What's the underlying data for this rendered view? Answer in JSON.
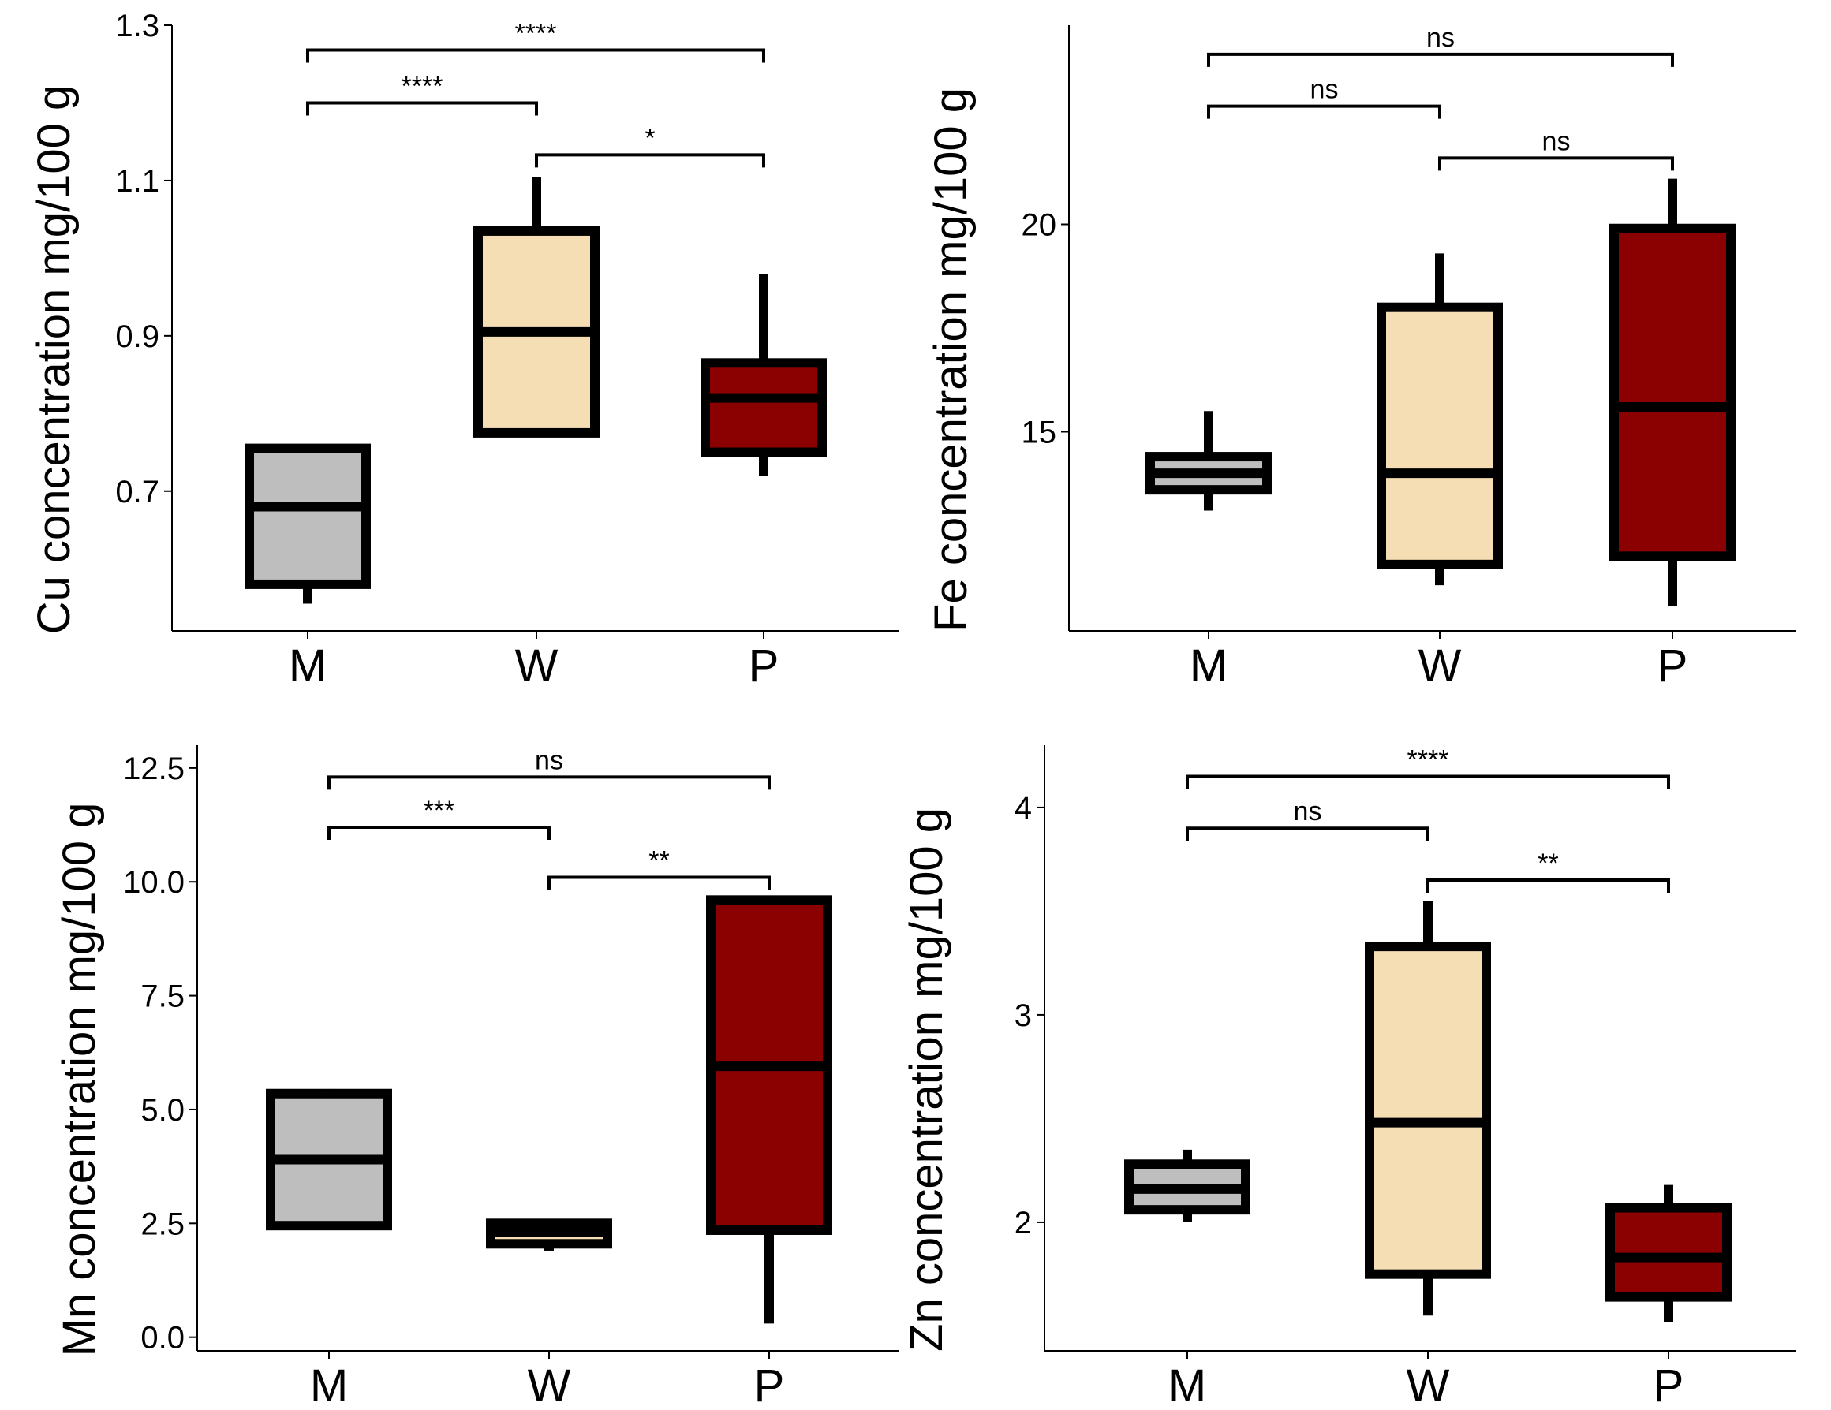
{
  "colors": {
    "M": "#bebebe",
    "W": "#f5deb3",
    "P": "#8b0000",
    "stroke": "#000000"
  },
  "chart_data": [
    {
      "type": "box",
      "title": "",
      "xlabel": "",
      "ylabel": "Cu concentration mg/100 g",
      "ylim": [
        0.52,
        1.3
      ],
      "yticks": [
        0.7,
        0.9,
        1.1,
        1.3
      ],
      "ytick_labels": [
        "0.7",
        "0.9",
        "1.1",
        "1.3"
      ],
      "categories": [
        "M",
        "W",
        "P"
      ],
      "boxes": [
        {
          "group": "M",
          "whisker_low": 0.555,
          "q1": 0.58,
          "median": 0.68,
          "q3": 0.755,
          "whisker_high": 0.76
        },
        {
          "group": "W",
          "whisker_low": 0.77,
          "q1": 0.775,
          "median": 0.905,
          "q3": 1.035,
          "whisker_high": 1.105
        },
        {
          "group": "P",
          "whisker_low": 0.72,
          "q1": 0.75,
          "median": 0.82,
          "q3": 0.865,
          "whisker_high": 0.98
        }
      ],
      "comparisons": [
        {
          "from": "M",
          "to": "P",
          "label": "****",
          "y": 1.268
        },
        {
          "from": "M",
          "to": "W",
          "label": "****",
          "y": 1.2
        },
        {
          "from": "W",
          "to": "P",
          "label": "*",
          "y": 1.133
        }
      ]
    },
    {
      "type": "box",
      "title": "",
      "xlabel": "",
      "ylabel": "Fe concentration mg/100 g",
      "ylim": [
        10.2,
        24.8
      ],
      "yticks": [
        15,
        20
      ],
      "ytick_labels": [
        "15",
        "20"
      ],
      "categories": [
        "M",
        "W",
        "P"
      ],
      "boxes": [
        {
          "group": "M",
          "whisker_low": 13.1,
          "q1": 13.6,
          "median": 14.0,
          "q3": 14.4,
          "whisker_high": 15.5
        },
        {
          "group": "W",
          "whisker_low": 11.3,
          "q1": 11.8,
          "median": 14.0,
          "q3": 18.0,
          "whisker_high": 19.3
        },
        {
          "group": "P",
          "whisker_low": 10.8,
          "q1": 12.0,
          "median": 15.6,
          "q3": 19.9,
          "whisker_high": 21.1
        }
      ],
      "comparisons": [
        {
          "from": "M",
          "to": "P",
          "label": "ns",
          "y": 24.1
        },
        {
          "from": "M",
          "to": "W",
          "label": "ns",
          "y": 22.85
        },
        {
          "from": "W",
          "to": "P",
          "label": "ns",
          "y": 21.6
        }
      ]
    },
    {
      "type": "box",
      "title": "",
      "xlabel": "",
      "ylabel": "Mn concentration mg/100 g",
      "ylim": [
        -0.3,
        13.0
      ],
      "yticks": [
        0.0,
        2.5,
        5.0,
        7.5,
        10.0,
        12.5
      ],
      "ytick_labels": [
        "0.0",
        "2.5",
        "5.0",
        "7.5",
        "10.0",
        "12.5"
      ],
      "categories": [
        "M",
        "W",
        "P"
      ],
      "boxes": [
        {
          "group": "M",
          "whisker_low": 2.4,
          "q1": 2.45,
          "median": 3.9,
          "q3": 5.35,
          "whisker_high": 5.45
        },
        {
          "group": "W",
          "whisker_low": 1.9,
          "q1": 2.05,
          "median": 2.3,
          "q3": 2.5,
          "whisker_high": 2.55
        },
        {
          "group": "P",
          "whisker_low": 0.3,
          "q1": 2.35,
          "median": 5.95,
          "q3": 9.6,
          "whisker_high": 9.65
        }
      ],
      "comparisons": [
        {
          "from": "M",
          "to": "P",
          "label": "ns",
          "y": 12.3
        },
        {
          "from": "M",
          "to": "W",
          "label": "***",
          "y": 11.2
        },
        {
          "from": "W",
          "to": "P",
          "label": "**",
          "y": 10.1
        }
      ]
    },
    {
      "type": "box",
      "title": "",
      "xlabel": "",
      "ylabel": "Zn concentration mg/100 g",
      "ylim": [
        1.38,
        4.3
      ],
      "yticks": [
        2,
        3,
        4
      ],
      "ytick_labels": [
        "2",
        "3",
        "4"
      ],
      "categories": [
        "M",
        "W",
        "P"
      ],
      "boxes": [
        {
          "group": "M",
          "whisker_low": 2.0,
          "q1": 2.06,
          "median": 2.16,
          "q3": 2.28,
          "whisker_high": 2.35
        },
        {
          "group": "W",
          "whisker_low": 1.55,
          "q1": 1.75,
          "median": 2.48,
          "q3": 3.33,
          "whisker_high": 3.55
        },
        {
          "group": "P",
          "whisker_low": 1.52,
          "q1": 1.64,
          "median": 1.83,
          "q3": 2.07,
          "whisker_high": 2.18
        }
      ],
      "comparisons": [
        {
          "from": "M",
          "to": "P",
          "label": "****",
          "y": 4.15
        },
        {
          "from": "M",
          "to": "W",
          "label": "ns",
          "y": 3.9
        },
        {
          "from": "W",
          "to": "P",
          "label": "**",
          "y": 3.65
        }
      ]
    }
  ]
}
